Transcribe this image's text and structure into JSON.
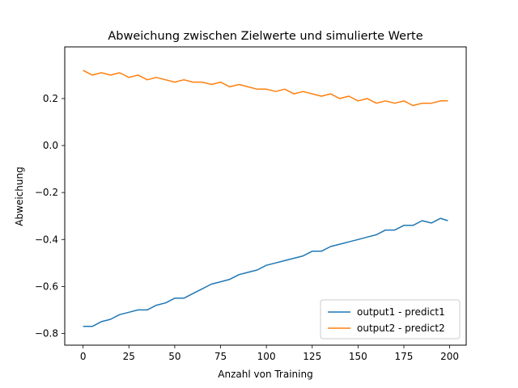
{
  "chart_data": {
    "type": "line",
    "title": "Abweichung zwischen Zielwerte und simulierte Werte",
    "xlabel": "Anzahl von Training",
    "ylabel": "Abweichung",
    "xlim": [
      -10,
      209
    ],
    "ylim": [
      -0.85,
      0.42
    ],
    "xticks": [
      0,
      25,
      50,
      75,
      100,
      125,
      150,
      175,
      200
    ],
    "yticks": [
      -0.8,
      -0.6,
      -0.4,
      -0.2,
      0.0,
      0.2
    ],
    "ytick_labels": [
      "−0.8",
      "−0.6",
      "−0.4",
      "−0.2",
      "0.0",
      "0.2"
    ],
    "grid": false,
    "legend_position": "lower-right",
    "series": [
      {
        "name": "output1 - predict1",
        "color": "#1f77b4",
        "x": [
          0,
          5,
          10,
          15,
          20,
          25,
          30,
          35,
          40,
          45,
          50,
          55,
          60,
          65,
          70,
          75,
          80,
          85,
          90,
          95,
          100,
          105,
          110,
          115,
          120,
          125,
          130,
          135,
          140,
          145,
          150,
          155,
          160,
          165,
          170,
          175,
          180,
          185,
          190,
          195,
          199
        ],
        "values": [
          -0.77,
          -0.77,
          -0.75,
          -0.74,
          -0.72,
          -0.71,
          -0.7,
          -0.7,
          -0.68,
          -0.67,
          -0.65,
          -0.65,
          -0.63,
          -0.61,
          -0.59,
          -0.58,
          -0.57,
          -0.55,
          -0.54,
          -0.53,
          -0.51,
          -0.5,
          -0.49,
          -0.48,
          -0.47,
          -0.45,
          -0.45,
          -0.43,
          -0.42,
          -0.41,
          -0.4,
          -0.39,
          -0.38,
          -0.36,
          -0.36,
          -0.34,
          -0.34,
          -0.32,
          -0.33,
          -0.31,
          -0.32
        ]
      },
      {
        "name": "output2 - predict2",
        "color": "#ff7f0e",
        "x": [
          0,
          5,
          10,
          15,
          20,
          25,
          30,
          35,
          40,
          45,
          50,
          55,
          60,
          65,
          70,
          75,
          80,
          85,
          90,
          95,
          100,
          105,
          110,
          115,
          120,
          125,
          130,
          135,
          140,
          145,
          150,
          155,
          160,
          165,
          170,
          175,
          180,
          185,
          190,
          195,
          199
        ],
        "values": [
          0.32,
          0.3,
          0.31,
          0.3,
          0.31,
          0.29,
          0.3,
          0.28,
          0.29,
          0.28,
          0.27,
          0.28,
          0.27,
          0.27,
          0.26,
          0.27,
          0.25,
          0.26,
          0.25,
          0.24,
          0.24,
          0.23,
          0.24,
          0.22,
          0.23,
          0.22,
          0.21,
          0.22,
          0.2,
          0.21,
          0.19,
          0.2,
          0.18,
          0.19,
          0.18,
          0.19,
          0.17,
          0.18,
          0.18,
          0.19,
          0.19
        ]
      }
    ]
  }
}
